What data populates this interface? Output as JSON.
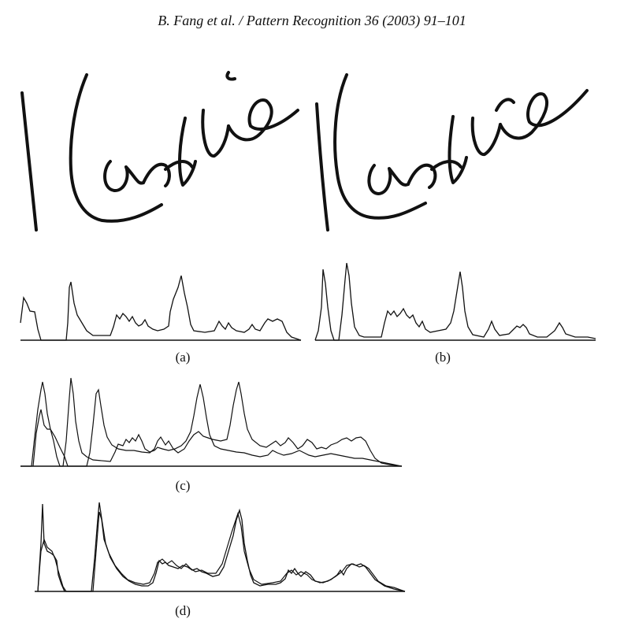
{
  "header": {
    "running_head": "B. Fang et al. / Pattern Recognition 36 (2003) 91–101"
  },
  "figure": {
    "signatures": [
      {
        "id": "signature-left",
        "text": "Candice"
      },
      {
        "id": "signature-right",
        "text": "Candice"
      }
    ],
    "panels": [
      {
        "id": "a",
        "label": "(a)"
      },
      {
        "id": "b",
        "label": "(b)"
      },
      {
        "id": "c",
        "label": "(c)"
      },
      {
        "id": "d",
        "label": "(d)"
      }
    ]
  },
  "colors": {
    "ink": "#111111",
    "background": "#ffffff"
  }
}
